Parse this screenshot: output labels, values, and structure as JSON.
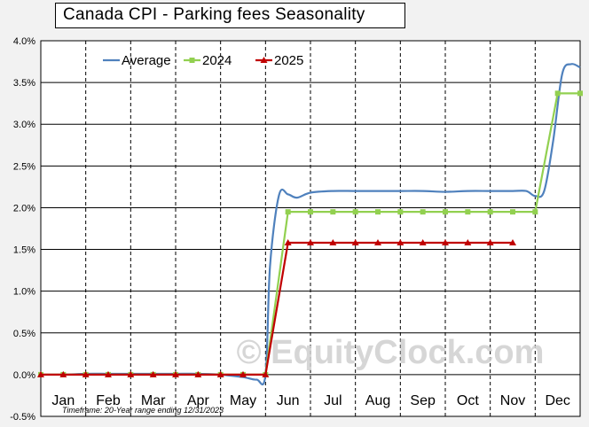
{
  "title": "Canada  CPI - Parking fees Seasonality",
  "footnote": "Timeframe: 20-Year range ending 12/31/2023",
  "watermark": "© EquityClock.com",
  "chart_data": {
    "type": "line",
    "title": "Canada  CPI - Parking fees Seasonality",
    "ylim": [
      -0.5,
      4.0
    ],
    "y_ticks": [
      "-0.5%",
      "0.0%",
      "0.5%",
      "1.0%",
      "1.5%",
      "2.0%",
      "2.5%",
      "3.0%",
      "3.5%",
      "4.0%"
    ],
    "categories": [
      "Jan",
      "Feb",
      "Mar",
      "Apr",
      "May",
      "Jun",
      "Jul",
      "Aug",
      "Sep",
      "Oct",
      "Nov",
      "Dec"
    ],
    "grid": true,
    "legend_position": "top-left",
    "series": [
      {
        "name": "Average",
        "color": "#4f81bd",
        "x": [
          0,
          0.5,
          1,
          1.5,
          2,
          2.5,
          3,
          3.5,
          4,
          4.5,
          4.8,
          5,
          5.1,
          5.3,
          5.5,
          5.7,
          6,
          6.5,
          7,
          7.5,
          8,
          8.5,
          9,
          9.5,
          10,
          10.5,
          10.8,
          11.0,
          11.2,
          11.4,
          11.6,
          11.8,
          12.0
        ],
        "values": [
          0.0,
          0.0,
          0.01,
          0.01,
          0.01,
          0.01,
          0.01,
          0.01,
          0.0,
          -0.03,
          -0.06,
          0.0,
          1.3,
          2.15,
          2.16,
          2.12,
          2.18,
          2.2,
          2.2,
          2.2,
          2.2,
          2.2,
          2.19,
          2.2,
          2.2,
          2.2,
          2.2,
          2.14,
          2.2,
          2.8,
          3.6,
          3.72,
          3.68
        ]
      },
      {
        "name": "2024",
        "color": "#92d050",
        "x": [
          0,
          0.5,
          1,
          1.5,
          2,
          2.5,
          3,
          3.5,
          4,
          4.5,
          5,
          5.5,
          6,
          6.5,
          7,
          7.5,
          8,
          8.5,
          9,
          9.5,
          10,
          10.5,
          11,
          11.5,
          12
        ],
        "values": [
          0,
          0,
          0,
          0,
          0,
          0,
          0,
          0,
          0,
          0,
          0,
          1.95,
          1.95,
          1.95,
          1.95,
          1.95,
          1.95,
          1.95,
          1.95,
          1.95,
          1.95,
          1.95,
          1.95,
          3.37,
          3.37
        ]
      },
      {
        "name": "2025",
        "color": "#c00000",
        "x": [
          0,
          0.5,
          1,
          1.5,
          2,
          2.5,
          3,
          3.5,
          4,
          4.5,
          5,
          5.5,
          6,
          6.5,
          7,
          7.5,
          8,
          8.5,
          9,
          9.5,
          10,
          10.5
        ],
        "values": [
          0,
          0,
          0,
          0,
          0,
          0,
          0,
          0,
          0,
          0,
          0,
          1.58,
          1.58,
          1.58,
          1.58,
          1.58,
          1.58,
          1.58,
          1.58,
          1.58,
          1.58,
          1.58
        ]
      }
    ]
  }
}
